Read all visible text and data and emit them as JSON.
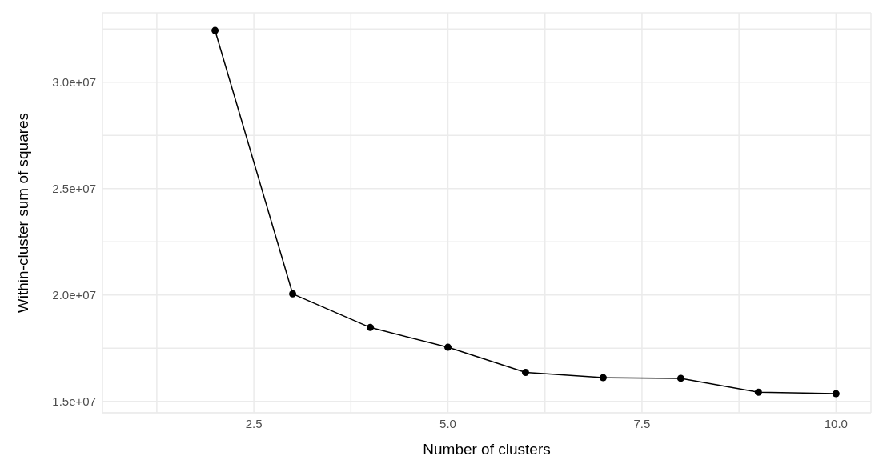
{
  "chart_data": {
    "type": "line",
    "xlabel": "Number of clusters",
    "ylabel": "Within-cluster sum of squares",
    "x": [
      2,
      3,
      4,
      5,
      6,
      7,
      8,
      9,
      10
    ],
    "series": [
      {
        "color": "#000000",
        "values": [
          32430000,
          20050000,
          18470000,
          17540000,
          16360000,
          16110000,
          16080000,
          15430000,
          15360000
        ]
      }
    ],
    "xlim": [
      0.55,
      10.45
    ],
    "xticks": [
      {
        "value": 1.25,
        "label": null
      },
      {
        "value": 2.5,
        "label": "2.5"
      },
      {
        "value": 3.75,
        "label": null
      },
      {
        "value": 5,
        "label": "5.0"
      },
      {
        "value": 6.25,
        "label": null
      },
      {
        "value": 7.5,
        "label": "7.5"
      },
      {
        "value": 8.75,
        "label": null
      },
      {
        "value": 10,
        "label": "10.0"
      }
    ],
    "ylim": [
      14460000,
      33260000
    ],
    "yticks": [
      {
        "value": 15000000,
        "label": "1.5e+07"
      },
      {
        "value": 17500000,
        "label": null
      },
      {
        "value": 20000000,
        "label": "2.0e+07"
      },
      {
        "value": 22500000,
        "label": null
      },
      {
        "value": 25000000,
        "label": "2.5e+07"
      },
      {
        "value": 27500000,
        "label": null
      },
      {
        "value": 30000000,
        "label": "3.0e+07"
      },
      {
        "value": 32500000,
        "label": null
      }
    ],
    "grid": true,
    "marker": "circle",
    "line_style": "solid",
    "legend": false
  }
}
